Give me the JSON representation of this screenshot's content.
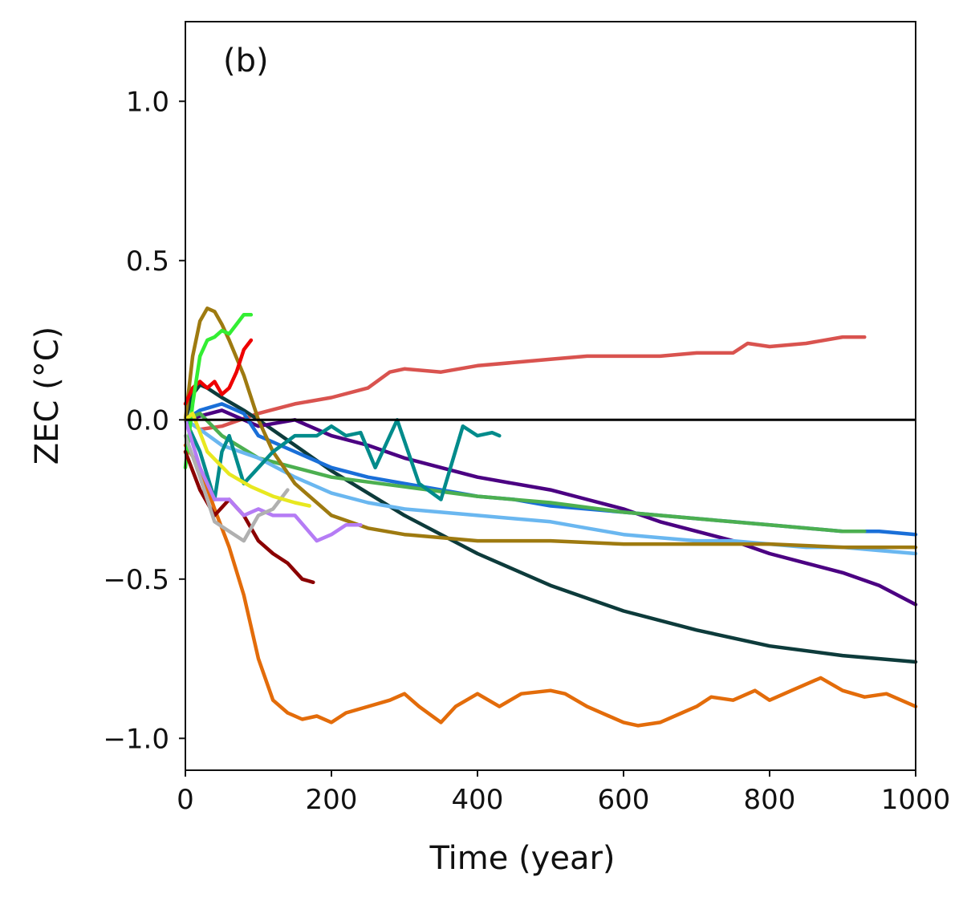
{
  "chart_data": {
    "type": "line",
    "panel_label": "(b)",
    "xlabel": "Time (year)",
    "ylabel": "ZEC (°C)",
    "xlim": [
      0,
      1000
    ],
    "ylim": [
      -1.1,
      1.25
    ],
    "xticks": [
      0,
      200,
      400,
      600,
      800,
      1000
    ],
    "yticks": [
      1.0,
      0.5,
      0.0,
      -0.5,
      -1.0
    ],
    "xtick_labels": [
      "0",
      "200",
      "400",
      "600",
      "800",
      "1000"
    ],
    "ytick_labels": [
      "1.0",
      "0.5",
      "0.0",
      "−0.5",
      "−1.0"
    ],
    "zero_line": 0.0,
    "grid": false,
    "legend": "none",
    "series": [
      {
        "color": "#d9534f",
        "x": [
          0,
          20,
          50,
          100,
          150,
          200,
          250,
          280,
          300,
          350,
          400,
          450,
          500,
          550,
          600,
          650,
          700,
          750,
          770,
          800,
          850,
          900,
          930
        ],
        "y": [
          0,
          -0.03,
          -0.02,
          0.02,
          0.05,
          0.07,
          0.1,
          0.15,
          0.16,
          0.15,
          0.17,
          0.18,
          0.19,
          0.2,
          0.2,
          0.2,
          0.21,
          0.21,
          0.24,
          0.23,
          0.24,
          0.26,
          0.26
        ]
      },
      {
        "color": "#e36c0a",
        "x": [
          0,
          20,
          40,
          60,
          80,
          100,
          120,
          140,
          160,
          180,
          200,
          220,
          250,
          280,
          300,
          320,
          350,
          370,
          400,
          430,
          460,
          500,
          520,
          550,
          580,
          600,
          620,
          650,
          680,
          700,
          720,
          750,
          780,
          800,
          830,
          860,
          870,
          900,
          930,
          960,
          1000
        ],
        "y": [
          -0.08,
          -0.15,
          -0.28,
          -0.4,
          -0.55,
          -0.75,
          -0.88,
          -0.92,
          -0.94,
          -0.93,
          -0.95,
          -0.92,
          -0.9,
          -0.88,
          -0.86,
          -0.9,
          -0.95,
          -0.9,
          -0.86,
          -0.9,
          -0.86,
          -0.85,
          -0.86,
          -0.9,
          -0.93,
          -0.95,
          -0.96,
          -0.95,
          -0.92,
          -0.9,
          -0.87,
          -0.88,
          -0.85,
          -0.88,
          -0.85,
          -0.82,
          -0.81,
          -0.85,
          -0.87,
          -0.86,
          -0.9
        ]
      },
      {
        "color": "#0d3b3b",
        "x": [
          0,
          10,
          20,
          30,
          50,
          80,
          100,
          150,
          200,
          250,
          300,
          400,
          500,
          600,
          700,
          800,
          900,
          1000
        ],
        "y": [
          0,
          0.08,
          0.11,
          0.1,
          0.07,
          0.03,
          0,
          -0.08,
          -0.16,
          -0.23,
          -0.3,
          -0.42,
          -0.52,
          -0.6,
          -0.66,
          -0.71,
          -0.74,
          -0.76
        ]
      },
      {
        "color": "#4b0082",
        "x": [
          0,
          50,
          100,
          150,
          200,
          250,
          300,
          350,
          400,
          450,
          500,
          550,
          600,
          650,
          700,
          750,
          800,
          850,
          900,
          950,
          1000
        ],
        "y": [
          0,
          0.03,
          -0.02,
          0.0,
          -0.05,
          -0.08,
          -0.12,
          -0.15,
          -0.18,
          -0.2,
          -0.22,
          -0.25,
          -0.28,
          -0.32,
          -0.35,
          -0.38,
          -0.42,
          -0.45,
          -0.48,
          -0.52,
          -0.58
        ]
      },
      {
        "color": "#1a6fd8",
        "x": [
          0,
          20,
          50,
          80,
          100,
          150,
          200,
          250,
          300,
          350,
          400,
          450,
          500,
          550,
          600,
          650,
          700,
          750,
          800,
          850,
          900,
          950,
          1000
        ],
        "y": [
          0,
          0.03,
          0.05,
          0.02,
          -0.05,
          -0.1,
          -0.15,
          -0.18,
          -0.2,
          -0.22,
          -0.24,
          -0.25,
          -0.27,
          -0.28,
          -0.29,
          -0.3,
          -0.31,
          -0.32,
          -0.33,
          -0.34,
          -0.35,
          -0.35,
          -0.36
        ]
      },
      {
        "color": "#4caf50",
        "x": [
          0,
          20,
          50,
          100,
          150,
          200,
          300,
          400,
          500,
          600,
          700,
          800,
          900,
          930
        ],
        "y": [
          0,
          0.02,
          -0.05,
          -0.12,
          -0.15,
          -0.18,
          -0.21,
          -0.24,
          -0.26,
          -0.29,
          -0.31,
          -0.33,
          -0.35,
          -0.35
        ]
      },
      {
        "color": "#6ab7f0",
        "x": [
          0,
          20,
          50,
          100,
          150,
          200,
          250,
          300,
          350,
          400,
          450,
          500,
          550,
          600,
          650,
          700,
          750,
          800,
          850,
          900,
          950,
          1000
        ],
        "y": [
          0,
          -0.03,
          -0.08,
          -0.12,
          -0.18,
          -0.23,
          -0.26,
          -0.28,
          -0.29,
          -0.3,
          -0.31,
          -0.32,
          -0.34,
          -0.36,
          -0.37,
          -0.38,
          -0.38,
          -0.39,
          -0.4,
          -0.4,
          -0.41,
          -0.42
        ]
      },
      {
        "color": "#9e7a10",
        "x": [
          0,
          10,
          20,
          30,
          40,
          50,
          60,
          80,
          100,
          120,
          150,
          200,
          250,
          300,
          400,
          500,
          600,
          700,
          800,
          900,
          1000
        ],
        "y": [
          0,
          0.2,
          0.31,
          0.35,
          0.34,
          0.3,
          0.25,
          0.14,
          0.0,
          -0.1,
          -0.2,
          -0.3,
          -0.34,
          -0.36,
          -0.38,
          -0.38,
          -0.39,
          -0.39,
          -0.39,
          -0.4,
          -0.4
        ]
      },
      {
        "color": "#008b8b",
        "x": [
          0,
          20,
          40,
          50,
          60,
          80,
          100,
          120,
          150,
          180,
          200,
          220,
          240,
          260,
          290,
          320,
          350,
          380,
          400,
          420,
          430
        ],
        "y": [
          0,
          -0.1,
          -0.25,
          -0.1,
          -0.05,
          -0.2,
          -0.15,
          -0.1,
          -0.05,
          -0.05,
          -0.02,
          -0.05,
          -0.04,
          -0.15,
          0.0,
          -0.2,
          -0.25,
          -0.02,
          -0.05,
          -0.04,
          -0.05
        ]
      },
      {
        "color": "#ee0000",
        "x": [
          0,
          10,
          20,
          30,
          40,
          50,
          60,
          70,
          80,
          90
        ],
        "y": [
          0.05,
          0.1,
          0.12,
          0.1,
          0.12,
          0.08,
          0.1,
          0.15,
          0.22,
          0.25
        ]
      },
      {
        "color": "#33ee33",
        "x": [
          0,
          10,
          20,
          30,
          40,
          50,
          60,
          70,
          80,
          90
        ],
        "y": [
          -0.15,
          0.05,
          0.2,
          0.25,
          0.26,
          0.28,
          0.27,
          0.3,
          0.33,
          0.33
        ]
      },
      {
        "color": "#8b0000",
        "x": [
          0,
          20,
          40,
          60,
          80,
          100,
          120,
          140,
          160,
          175
        ],
        "y": [
          -0.1,
          -0.22,
          -0.3,
          -0.25,
          -0.3,
          -0.38,
          -0.42,
          -0.45,
          -0.5,
          -0.51
        ]
      },
      {
        "color": "#b57cf5",
        "x": [
          0,
          20,
          40,
          60,
          80,
          100,
          120,
          150,
          180,
          200,
          220,
          240
        ],
        "y": [
          0,
          -0.15,
          -0.25,
          -0.25,
          -0.3,
          -0.28,
          -0.3,
          -0.3,
          -0.38,
          -0.36,
          -0.33,
          -0.33
        ]
      },
      {
        "color": "#b0b0b0",
        "x": [
          0,
          20,
          40,
          60,
          80,
          100,
          120,
          140
        ],
        "y": [
          -0.05,
          -0.18,
          -0.32,
          -0.35,
          -0.38,
          -0.3,
          -0.28,
          -0.22
        ]
      },
      {
        "color": "#e8e820",
        "x": [
          0,
          10,
          30,
          60,
          90,
          120,
          150,
          170
        ],
        "y": [
          0,
          0.02,
          -0.1,
          -0.17,
          -0.21,
          -0.24,
          -0.26,
          -0.27
        ]
      }
    ]
  }
}
